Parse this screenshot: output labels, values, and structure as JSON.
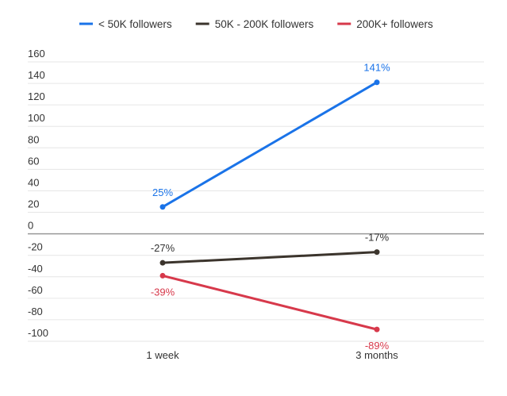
{
  "chart_data": {
    "type": "line",
    "title": "",
    "xlabel": "",
    "ylabel": "",
    "categories": [
      "1 week",
      "3 months"
    ],
    "ylim": [
      -100,
      160
    ],
    "yticks": [
      160,
      140,
      120,
      100,
      80,
      60,
      40,
      20,
      0,
      -20,
      -40,
      -60,
      -80,
      -100
    ],
    "grid": true,
    "legend_position": "top-center",
    "series": [
      {
        "name": "< 50K followers",
        "color": "#1a73e8",
        "values": [
          25,
          141
        ],
        "labels": [
          "25%",
          "141%"
        ]
      },
      {
        "name": "50K - 200K followers",
        "color": "#3b342c",
        "values": [
          -27,
          -17
        ],
        "labels": [
          "-27%",
          "-17%"
        ]
      },
      {
        "name": "200K+ followers",
        "color": "#d7394b",
        "values": [
          -39,
          -89
        ],
        "labels": [
          "-39%",
          "-89%"
        ]
      }
    ]
  }
}
